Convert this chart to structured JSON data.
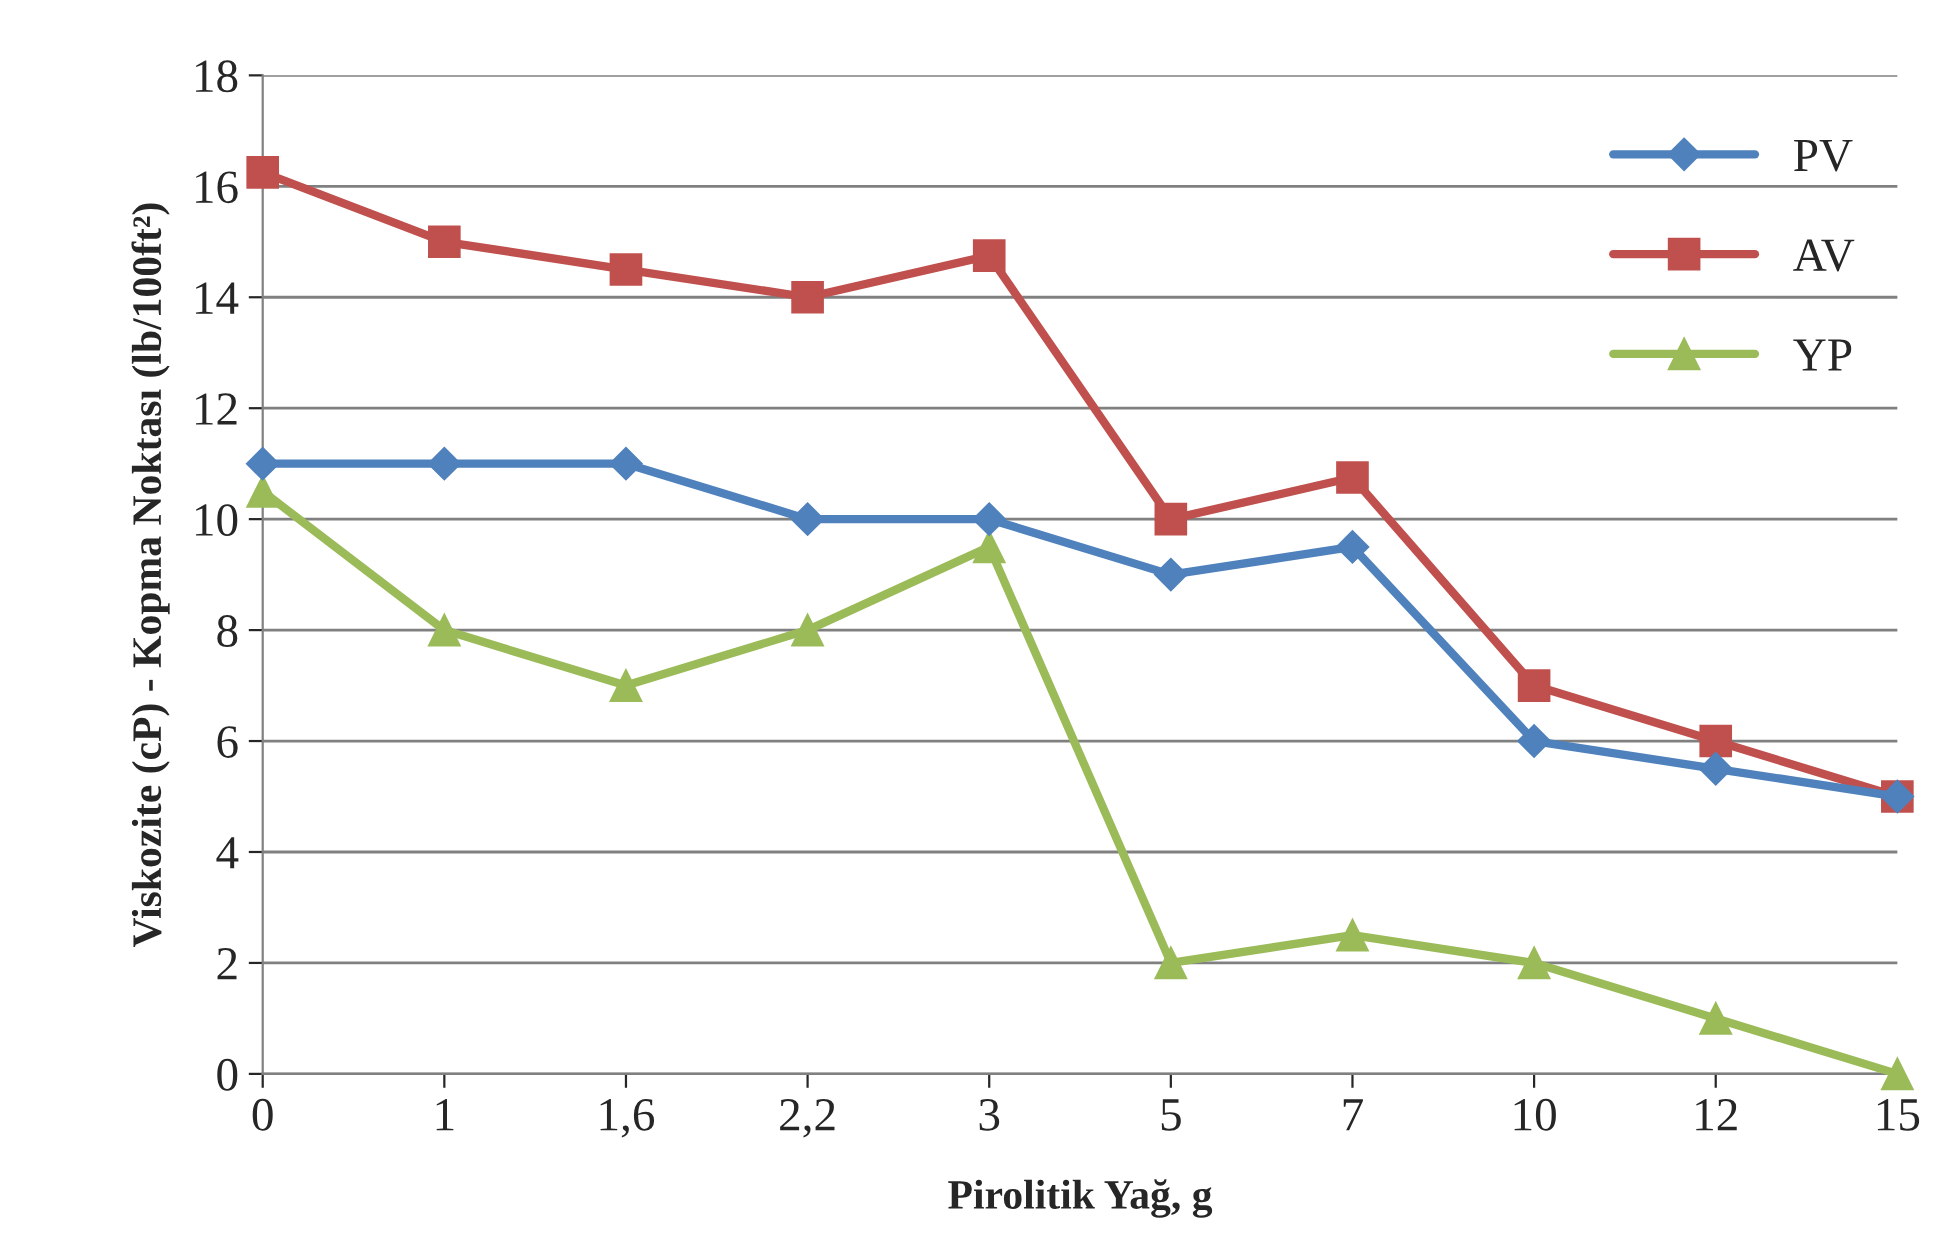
{
  "chart_data": {
    "type": "line",
    "xlabel": "Pirolitik Yağ, g",
    "ylabel": "Viskozite (cP) - Kopma Noktası (lb/100ft²)",
    "categories": [
      "0",
      "1",
      "1,6",
      "2,2",
      "3",
      "5",
      "7",
      "10",
      "12",
      "15"
    ],
    "series": [
      {
        "name": "PV",
        "color": "#4f81bd",
        "marker": "diamond",
        "values": [
          11,
          11,
          11,
          10,
          10,
          9,
          9.5,
          6,
          5.5,
          5
        ]
      },
      {
        "name": "AV",
        "color": "#c0504d",
        "marker": "square",
        "values": [
          16.25,
          15,
          14.5,
          14,
          14.75,
          10,
          10.75,
          7,
          6,
          5
        ]
      },
      {
        "name": "YP",
        "color": "#9bbb59",
        "marker": "triangle",
        "values": [
          10.5,
          8,
          7,
          8,
          9.5,
          2,
          2.5,
          2,
          1,
          0
        ]
      }
    ],
    "ylim": [
      0,
      18
    ],
    "yticks": [
      0,
      2,
      4,
      6,
      8,
      10,
      12,
      14,
      16,
      18
    ],
    "grid": "y",
    "legend": "top right",
    "line_style": "solid"
  }
}
